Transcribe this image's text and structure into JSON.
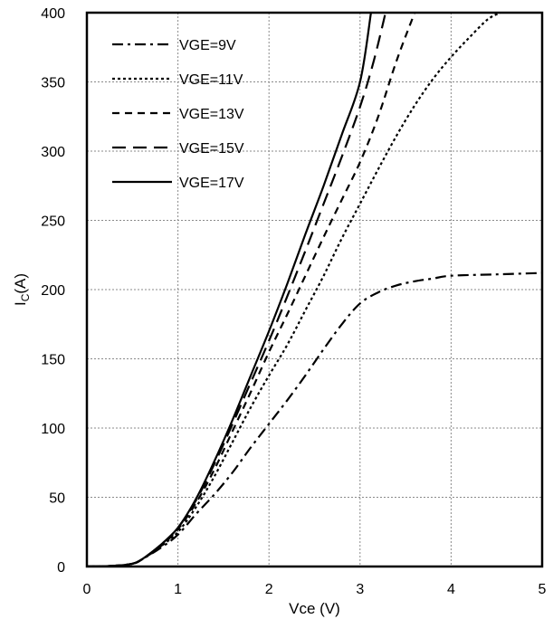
{
  "chart_data": {
    "type": "line",
    "title": "",
    "xlabel": "Vce (V)",
    "ylabel_main": "I",
    "ylabel_sub": "C",
    "ylabel_unit": "(A)",
    "xlim": [
      0,
      5
    ],
    "ylim": [
      0,
      400
    ],
    "x_ticks": [
      0,
      1,
      2,
      3,
      4,
      5
    ],
    "y_ticks": [
      0,
      50,
      100,
      150,
      200,
      250,
      300,
      350,
      400
    ],
    "grid": true,
    "legend_position": "top-left",
    "series": [
      {
        "name": "VGE=9V",
        "dash": "dash-dot",
        "color": "#000000",
        "x": [
          0,
          0.3,
          0.5,
          0.6,
          0.8,
          1.0,
          1.2,
          1.4,
          1.6,
          1.8,
          2.0,
          2.2,
          2.4,
          2.6,
          2.8,
          3.0,
          3.2,
          3.4,
          3.6,
          3.8,
          4.0,
          4.5,
          5.0
        ],
        "y": [
          0,
          0.5,
          2,
          5,
          13,
          23,
          38,
          52,
          68,
          86,
          103,
          120,
          138,
          157,
          175,
          190,
          198,
          203,
          206,
          208,
          210,
          211,
          212
        ]
      },
      {
        "name": "VGE=11V",
        "dash": "dot",
        "color": "#000000",
        "x": [
          0,
          0.3,
          0.5,
          0.6,
          0.8,
          1.0,
          1.2,
          1.4,
          1.6,
          1.8,
          2.0,
          2.2,
          2.4,
          2.6,
          2.8,
          3.0,
          3.2,
          3.4,
          3.6,
          3.8,
          4.0,
          4.2,
          4.4,
          4.54
        ],
        "y": [
          0,
          0.5,
          2,
          5,
          14,
          25,
          43,
          65,
          90,
          115,
          138,
          160,
          185,
          210,
          237,
          262,
          287,
          311,
          333,
          352,
          368,
          382,
          395,
          400
        ]
      },
      {
        "name": "VGE=13V",
        "dash": "short-dash",
        "color": "#000000",
        "x": [
          0,
          0.3,
          0.5,
          0.6,
          0.8,
          1.0,
          1.2,
          1.4,
          1.6,
          1.8,
          2.0,
          2.2,
          2.4,
          2.6,
          2.8,
          3.0,
          3.2,
          3.4,
          3.6
        ],
        "y": [
          0,
          0.5,
          2,
          5,
          14,
          27,
          46,
          70,
          98,
          126,
          155,
          182,
          210,
          238,
          265,
          292,
          325,
          365,
          400
        ]
      },
      {
        "name": "VGE=15V",
        "dash": "long-dash",
        "color": "#000000",
        "x": [
          0,
          0.3,
          0.5,
          0.6,
          0.8,
          1.0,
          1.2,
          1.4,
          1.6,
          1.8,
          2.0,
          2.2,
          2.4,
          2.6,
          2.8,
          3.0,
          3.15,
          3.28
        ],
        "y": [
          0,
          0.5,
          2,
          5,
          15,
          28,
          48,
          74,
          103,
          133,
          163,
          195,
          228,
          262,
          296,
          332,
          365,
          400
        ]
      },
      {
        "name": "VGE=17V",
        "dash": "solid",
        "color": "#000000",
        "x": [
          0,
          0.3,
          0.5,
          0.6,
          0.8,
          1.0,
          1.2,
          1.4,
          1.6,
          1.8,
          2.0,
          2.2,
          2.4,
          2.6,
          2.8,
          3.0,
          3.12
        ],
        "y": [
          0,
          0.5,
          2,
          5,
          15,
          28,
          49,
          76,
          106,
          138,
          170,
          204,
          240,
          275,
          312,
          350,
          400
        ]
      }
    ]
  }
}
